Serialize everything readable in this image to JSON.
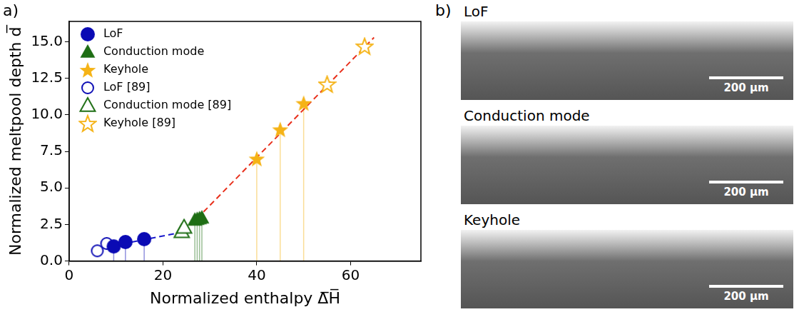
{
  "chart_data": {
    "type": "scatter",
    "panel_label": "a)",
    "x_label": "Normalized enthalpy Δ̅H̅",
    "y_label": "Normalized meltpool depth d̅",
    "xlim": [
      0,
      75
    ],
    "xticks": [
      0,
      20,
      40,
      60
    ],
    "ylim": [
      0,
      16.4
    ],
    "yticks": [
      {
        "value": 0,
        "label": "0.0"
      },
      {
        "value": 2.5,
        "label": "2.5"
      },
      {
        "value": 5,
        "label": "5.0"
      },
      {
        "value": 7.5,
        "label": "7.5"
      },
      {
        "value": 10,
        "label": "10.0"
      },
      {
        "value": 12.5,
        "label": "12.5"
      },
      {
        "value": 15,
        "label": "15.0"
      }
    ],
    "grid": false,
    "legend": "upper left",
    "series": [
      {
        "name": "LoF",
        "color": "#0a0ab4",
        "marker": "circle",
        "line_style": "drop",
        "x": [
          9.5,
          12,
          16
        ],
        "values": [
          1.0,
          1.3,
          1.5
        ]
      },
      {
        "name": "Conduction mode",
        "color": "#1e6e14",
        "marker": "triangle",
        "line_style": "drop",
        "x": [
          26.8,
          27.3,
          27.8,
          28.3
        ],
        "values": [
          2.8,
          2.85,
          2.9,
          2.95
        ]
      },
      {
        "name": "Keyhole",
        "color": "#f5b316",
        "marker": "star",
        "line_style": "drop",
        "x": [
          40,
          45,
          50
        ],
        "values": [
          7.0,
          9.0,
          10.8
        ]
      },
      {
        "name": "LoF [89]",
        "color": "#0a0ab4",
        "marker": "circle-open",
        "x": [
          6,
          8
        ],
        "values": [
          0.7,
          1.2
        ]
      },
      {
        "name": "Conduction mode [89]",
        "color": "#1e6e14",
        "marker": "triangle-open",
        "x": [
          24,
          24.5
        ],
        "values": [
          2.0,
          2.3
        ]
      },
      {
        "name": "Keyhole [89]",
        "color": "#f5b316",
        "marker": "star-open",
        "x": [
          55,
          63
        ],
        "values": [
          12.1,
          14.7
        ]
      }
    ],
    "fit_lines": [
      {
        "color": "#1a1acc",
        "line_style": "dashed",
        "x": [
          9.5,
          24.5
        ],
        "values": [
          1.05,
          2.0
        ]
      },
      {
        "color": "#e8301c",
        "line_style": "dashed",
        "x": [
          24.5,
          65
        ],
        "values": [
          2.0,
          15.3
        ]
      }
    ]
  },
  "panel_b": {
    "panel_label": "b)",
    "images": [
      {
        "label": "LoF",
        "scale_bar": "200 µm"
      },
      {
        "label": "Conduction mode",
        "scale_bar": "200 µm"
      },
      {
        "label": "Keyhole",
        "scale_bar": "200 µm"
      }
    ]
  }
}
